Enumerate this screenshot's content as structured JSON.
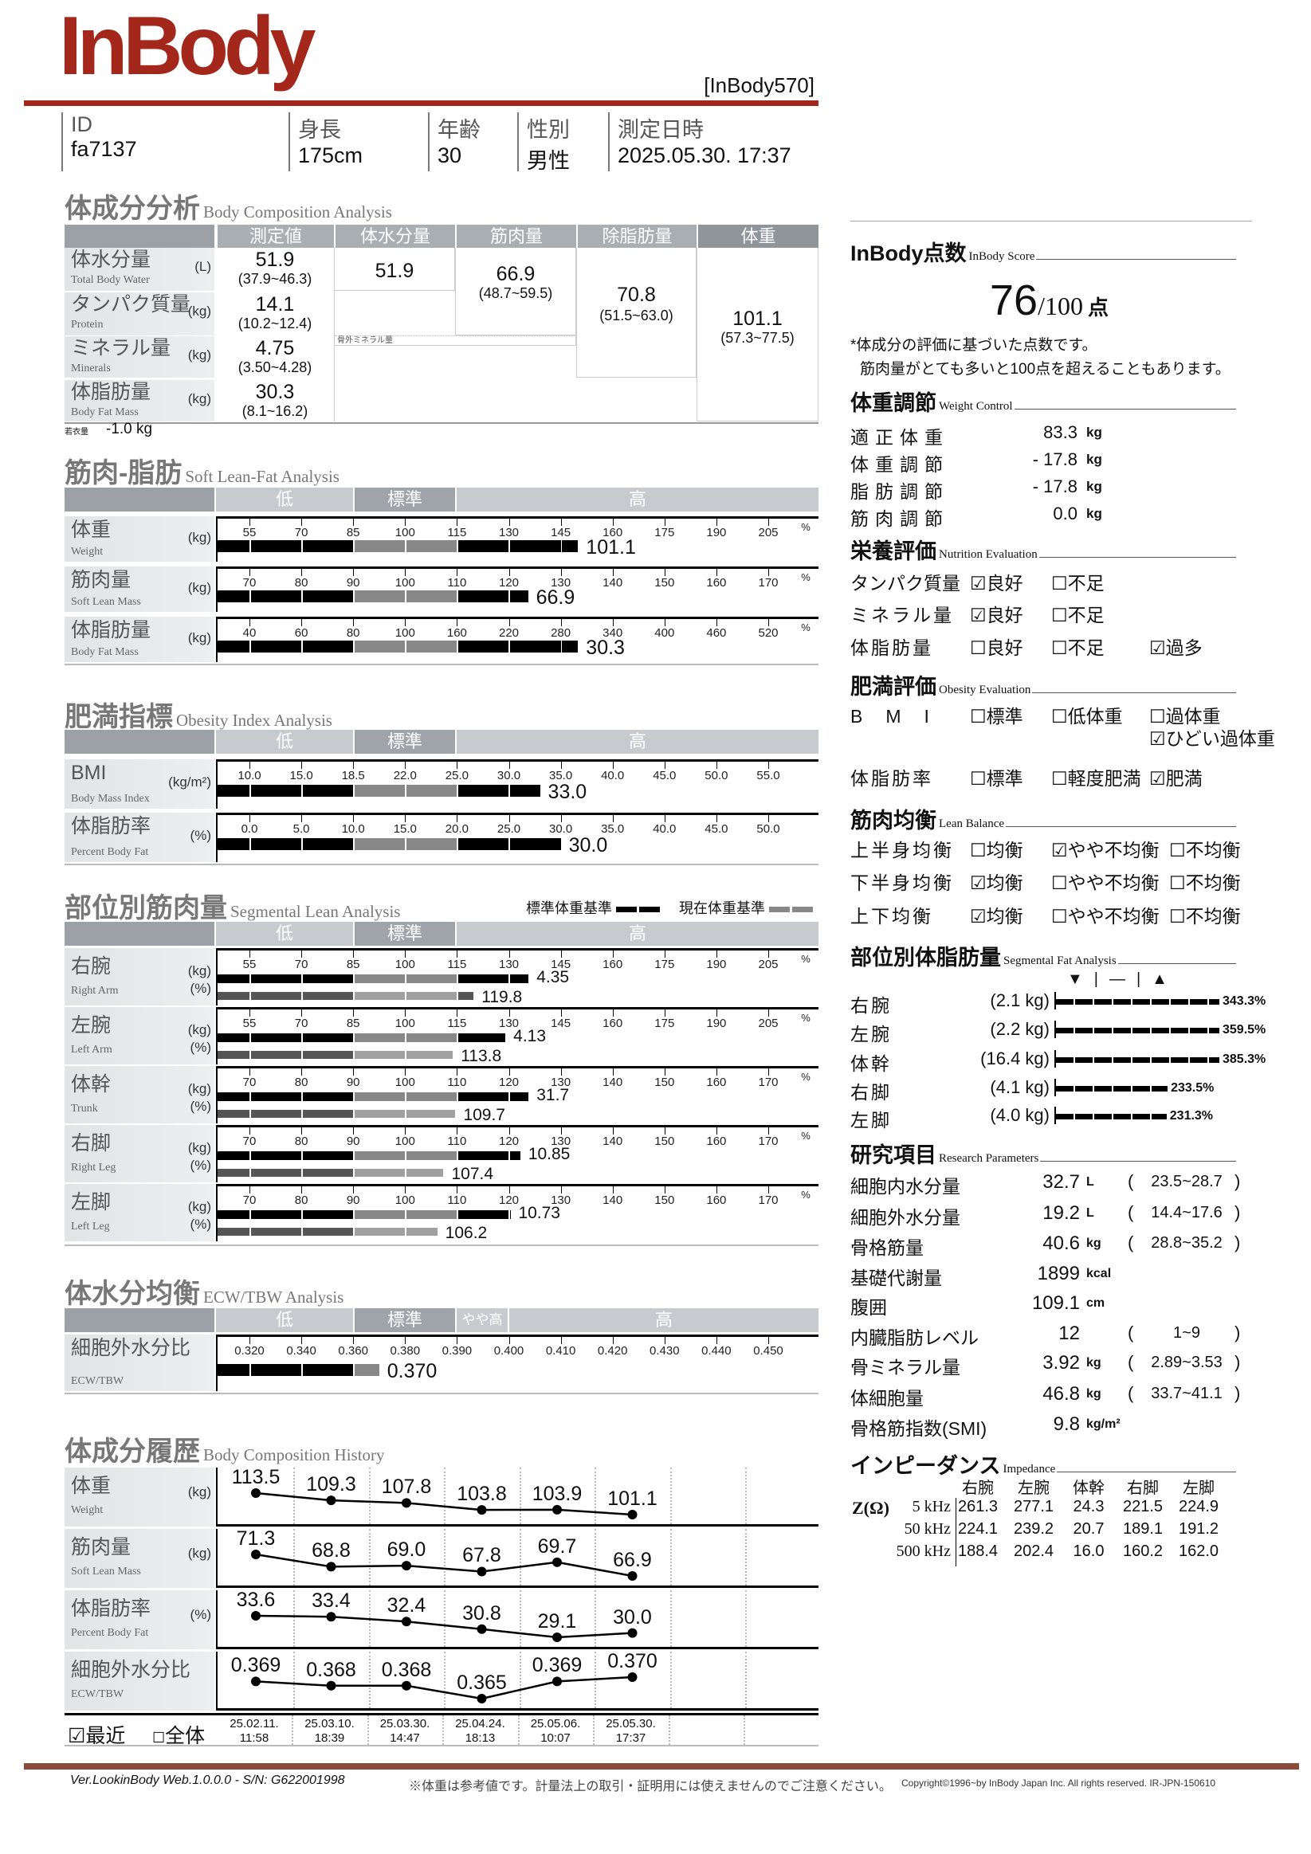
{
  "header": {
    "logo": "InBody",
    "model": "[InBody570]"
  },
  "info": [
    {
      "label": "ID",
      "value": "fa7137"
    },
    {
      "label": "身長",
      "value": "175cm"
    },
    {
      "label": "年齢",
      "value": "30"
    },
    {
      "label": "性別",
      "value": "男性"
    },
    {
      "label": "測定日時",
      "value": "2025.05.30. 17:37"
    }
  ],
  "bca": {
    "title": "体成分分析",
    "subtitle": "Body Composition Analysis",
    "columns": [
      "測定値",
      "体水分量",
      "筋肉量",
      "除脂肪量",
      "体重"
    ],
    "rows": [
      {
        "jp": "体水分量",
        "en": "Total Body Water",
        "unit": "(L)",
        "value": "51.9",
        "range": "(37.9~46.3)"
      },
      {
        "jp": "タンパク質量",
        "en": "Protein",
        "unit": "(kg)",
        "value": "14.1",
        "range": "(10.2~12.4)"
      },
      {
        "jp": "ミネラル量",
        "en": "Minerals",
        "unit": "(kg)",
        "value": "4.75",
        "range": "(3.50~4.28)"
      },
      {
        "jp": "体脂肪量",
        "en": "Body Fat Mass",
        "unit": "(kg)",
        "value": "30.3",
        "range": "(8.1~16.2)"
      }
    ],
    "tbw": "51.9",
    "slm": {
      "value": "66.9",
      "range": "(48.7~59.5)"
    },
    "ffm": {
      "value": "70.8",
      "range": "(51.5~63.0)"
    },
    "weight": {
      "value": "101.1",
      "range": "(57.3~77.5)"
    },
    "osseous_label": "骨外ミネラル量",
    "clothes_label": "若衣量",
    "clothes_value": "-1.0 kg"
  },
  "zones": {
    "low": "低",
    "normal": "標準",
    "high": "高",
    "slightly_high": "やや高"
  },
  "slf": {
    "title": "筋肉-脂肪",
    "subtitle": "Soft Lean-Fat Analysis",
    "rows": [
      {
        "jp": "体重",
        "en": "Weight",
        "unit": "(kg)",
        "pct": "%",
        "ticks": [
          "55",
          "70",
          "85",
          "100",
          "115",
          "130",
          "145",
          "160",
          "175",
          "190",
          "205"
        ],
        "value": "101.1",
        "bar_percent": 150
      },
      {
        "jp": "筋肉量",
        "en": "Soft Lean Mass",
        "unit": "(kg)",
        "pct": "%",
        "ticks": [
          "70",
          "80",
          "90",
          "100",
          "110",
          "120",
          "130",
          "140",
          "150",
          "160",
          "170"
        ],
        "value": "66.9",
        "bar_percent": 123.7
      },
      {
        "jp": "体脂肪量",
        "en": "Body Fat Mass",
        "unit": "(kg)",
        "pct": "%",
        "ticks": [
          "40",
          "60",
          "80",
          "100",
          "160",
          "220",
          "280",
          "340",
          "400",
          "460",
          "520"
        ],
        "value": "30.3",
        "bar_percent": 300
      }
    ]
  },
  "obesity": {
    "title": "肥満指標",
    "subtitle": "Obesity Index Analysis",
    "rows": [
      {
        "jp": "BMI",
        "en": "Body Mass Index",
        "unit": "(kg/m²)",
        "ticks": [
          "10.0",
          "15.0",
          "18.5",
          "22.0",
          "25.0",
          "30.0",
          "35.0",
          "40.0",
          "45.0",
          "50.0",
          "55.0"
        ],
        "value": "33.0",
        "bar_percent": 33.0
      },
      {
        "jp": "体脂肪率",
        "en": "Percent Body Fat",
        "unit": "(%)",
        "ticks": [
          "0.0",
          "5.0",
          "10.0",
          "15.0",
          "20.0",
          "25.0",
          "30.0",
          "35.0",
          "40.0",
          "45.0",
          "50.0"
        ],
        "value": "30.0",
        "bar_percent": 30.0
      }
    ]
  },
  "segmental": {
    "title": "部位別筋肉量",
    "subtitle": "Segmental Lean Analysis",
    "legend_ideal": "標準体重基準",
    "legend_current": "現在体重基準",
    "rows": [
      {
        "jp": "右腕",
        "en": "Right Arm",
        "unit_kg": "(kg)",
        "unit_pct": "(%)",
        "pct": "%",
        "ticks": [
          "55",
          "70",
          "85",
          "100",
          "115",
          "130",
          "145",
          "160",
          "175",
          "190",
          "205"
        ],
        "kg": "4.35",
        "kg_bar_percent": 135.7,
        "percent": "119.8",
        "percent_value": 119.8
      },
      {
        "jp": "左腕",
        "en": "Left Arm",
        "unit_kg": "(kg)",
        "unit_pct": "(%)",
        "pct": "%",
        "ticks": [
          "55",
          "70",
          "85",
          "100",
          "115",
          "130",
          "145",
          "160",
          "175",
          "190",
          "205"
        ],
        "kg": "4.13",
        "kg_bar_percent": 129,
        "percent": "113.8",
        "percent_value": 113.8
      },
      {
        "jp": "体幹",
        "en": "Trunk",
        "unit_kg": "(kg)",
        "unit_pct": "(%)",
        "pct": "%",
        "ticks": [
          "70",
          "80",
          "90",
          "100",
          "110",
          "120",
          "130",
          "140",
          "150",
          "160",
          "170"
        ],
        "kg": "31.7",
        "kg_bar_percent": 123.8,
        "percent": "109.7",
        "percent_value": 109.7
      },
      {
        "jp": "右脚",
        "en": "Right Leg",
        "unit_kg": "(kg)",
        "unit_pct": "(%)",
        "pct": "%",
        "ticks": [
          "70",
          "80",
          "90",
          "100",
          "110",
          "120",
          "130",
          "140",
          "150",
          "160",
          "170"
        ],
        "kg": "10.85",
        "kg_bar_percent": 122.2,
        "percent": "107.4",
        "percent_value": 107.4
      },
      {
        "jp": "左脚",
        "en": "Left Leg",
        "unit_kg": "(kg)",
        "unit_pct": "(%)",
        "pct": "%",
        "ticks": [
          "70",
          "80",
          "90",
          "100",
          "110",
          "120",
          "130",
          "140",
          "150",
          "160",
          "170"
        ],
        "kg": "10.73",
        "kg_bar_percent": 120.3,
        "percent": "106.2",
        "percent_value": 106.2
      }
    ]
  },
  "ecw": {
    "title": "体水分均衡",
    "subtitle": "ECW/TBW Analysis",
    "rows": [
      {
        "jp": "細胞外水分比",
        "en": "ECW/TBW",
        "unit": "",
        "ticks": [
          "0.320",
          "0.340",
          "0.360",
          "0.380",
          "0.390",
          "0.400",
          "0.410",
          "0.420",
          "0.430",
          "0.440",
          "0.450"
        ],
        "value": "0.370",
        "bar_percent": 0.37
      }
    ]
  },
  "history": {
    "title": "体成分履歴",
    "subtitle": "Body Composition History",
    "rows": [
      {
        "jp": "体重",
        "en": "Weight",
        "unit": "(kg)",
        "values": [
          "113.5",
          "109.3",
          "107.8",
          "103.8",
          "103.9",
          "101.1"
        ]
      },
      {
        "jp": "筋肉量",
        "en": "Soft Lean Mass",
        "unit": "(kg)",
        "values": [
          "71.3",
          "68.8",
          "69.0",
          "67.8",
          "69.7",
          "66.9"
        ]
      },
      {
        "jp": "体脂肪率",
        "en": "Percent Body Fat",
        "unit": "(%)",
        "values": [
          "33.6",
          "33.4",
          "32.4",
          "30.8",
          "29.1",
          "30.0"
        ]
      },
      {
        "jp": "細胞外水分比",
        "en": "ECW/TBW",
        "unit": "",
        "values": [
          "0.369",
          "0.368",
          "0.368",
          "0.365",
          "0.369",
          "0.370"
        ]
      }
    ],
    "dates": [
      {
        "d": "25.02.11.",
        "t": "11:58"
      },
      {
        "d": "25.03.10.",
        "t": "18:39"
      },
      {
        "d": "25.03.30.",
        "t": "14:47"
      },
      {
        "d": "25.04.24.",
        "t": "18:13"
      },
      {
        "d": "25.05.06.",
        "t": "10:07"
      },
      {
        "d": "25.05.30.",
        "t": "17:37"
      }
    ],
    "recent": {
      "label": "最近",
      "checked": true
    },
    "all": {
      "label": "全体",
      "checked": false
    }
  },
  "score": {
    "title": "InBody点数",
    "subtitle": "InBody Score",
    "value": "76",
    "max": "/100",
    "unit": "点",
    "note1": "*体成分の評価に基づいた点数です。",
    "note2": "筋肉量がとても多いと100点を超えることもあります。"
  },
  "weight_control": {
    "title": "体重調節",
    "subtitle": "Weight Control",
    "rows": [
      {
        "label": "適正体重",
        "value": "83.3",
        "unit": "kg"
      },
      {
        "label": "体重調節",
        "value": "- 17.8",
        "unit": "kg"
      },
      {
        "label": "脂肪調節",
        "value": "- 17.8",
        "unit": "kg"
      },
      {
        "label": "筋肉調節",
        "value": "0.0",
        "unit": "kg"
      }
    ]
  },
  "nutrition": {
    "title": "栄養評価",
    "subtitle": "Nutrition Evaluation",
    "rows": [
      {
        "label": "タンパク質量",
        "options": [
          {
            "label": "良好",
            "checked": true
          },
          {
            "label": "不足",
            "checked": false
          }
        ]
      },
      {
        "label": "ミネラル量",
        "options": [
          {
            "label": "良好",
            "checked": true
          },
          {
            "label": "不足",
            "checked": false
          }
        ]
      },
      {
        "label": "体脂肪量",
        "options": [
          {
            "label": "良好",
            "checked": false
          },
          {
            "label": "不足",
            "checked": false
          },
          {
            "label": "過多",
            "checked": true
          }
        ]
      }
    ]
  },
  "obesity_eval": {
    "title": "肥満評価",
    "subtitle": "Obesity Evaluation",
    "rows": [
      {
        "label": "B　M　I",
        "options": [
          {
            "label": "標準",
            "checked": false
          },
          {
            "label": "低体重",
            "checked": false
          },
          {
            "label": "過体重",
            "checked": false
          },
          {
            "label": "ひどい過体重",
            "checked": true
          }
        ]
      },
      {
        "label": "体脂肪率",
        "options": [
          {
            "label": "標準",
            "checked": false
          },
          {
            "label": "軽度肥満",
            "checked": false
          },
          {
            "label": "肥満",
            "checked": true
          }
        ]
      }
    ]
  },
  "lean_balance": {
    "title": "筋肉均衡",
    "subtitle": "Lean Balance",
    "rows": [
      {
        "label": "上半身均衡",
        "options": [
          {
            "label": "均衡",
            "checked": false
          },
          {
            "label": "やや不均衡",
            "checked": true
          },
          {
            "label": "不均衡",
            "checked": false
          }
        ]
      },
      {
        "label": "下半身均衡",
        "options": [
          {
            "label": "均衡",
            "checked": true
          },
          {
            "label": "やや不均衡",
            "checked": false
          },
          {
            "label": "不均衡",
            "checked": false
          }
        ]
      },
      {
        "label": "上下均衡",
        "options": [
          {
            "label": "均衡",
            "checked": true
          },
          {
            "label": "やや不均衡",
            "checked": false
          },
          {
            "label": "不均衡",
            "checked": false
          }
        ]
      }
    ]
  },
  "seg_fat": {
    "title": "部位別体脂肪量",
    "subtitle": "Segmental Fat Analysis",
    "rows": [
      {
        "label": "右腕",
        "kg": "(2.1 kg)",
        "percent": "343.3%",
        "percent_value": 343.3
      },
      {
        "label": "左腕",
        "kg": "(2.2 kg)",
        "percent": "359.5%",
        "percent_value": 359.5
      },
      {
        "label": "体幹",
        "kg": "(16.4 kg)",
        "percent": "385.3%",
        "percent_value": 385.3
      },
      {
        "label": "右脚",
        "kg": "(4.1 kg)",
        "percent": "233.5%",
        "percent_value": 233.5
      },
      {
        "label": "左脚",
        "kg": "(4.0 kg)",
        "percent": "231.3%",
        "percent_value": 231.3
      }
    ]
  },
  "research": {
    "title": "研究項目",
    "subtitle": "Research Parameters",
    "rows": [
      {
        "label": "細胞内水分量",
        "value": "32.7",
        "unit": "L",
        "range": "23.5~28.7"
      },
      {
        "label": "細胞外水分量",
        "value": "19.2",
        "unit": "L",
        "range": "14.4~17.6"
      },
      {
        "label": "骨格筋量",
        "value": "40.6",
        "unit": "kg",
        "range": "28.8~35.2"
      },
      {
        "label": "基礎代謝量",
        "value": "1899",
        "unit": "kcal",
        "range": ""
      },
      {
        "label": "腹囲",
        "value": "109.1",
        "unit": "cm",
        "range": ""
      },
      {
        "label": "内臓脂肪レベル",
        "value": "12",
        "unit": "",
        "range": "1~9"
      },
      {
        "label": "骨ミネラル量",
        "value": "3.92",
        "unit": "kg",
        "range": "2.89~3.53"
      },
      {
        "label": "体細胞量",
        "value": "46.8",
        "unit": "kg",
        "range": "33.7~41.1"
      },
      {
        "label": "骨格筋指数(SMI)",
        "value": "9.8",
        "unit": "kg/m²",
        "range": ""
      }
    ]
  },
  "impedance": {
    "title": "インピーダンス",
    "subtitle": "Impedance",
    "z_label": "Z(Ω)",
    "columns": [
      "右腕",
      "左腕",
      "体幹",
      "右脚",
      "左脚"
    ],
    "rows": [
      {
        "freq": "5 kHz",
        "values": [
          "261.3",
          "277.1",
          "24.3",
          "221.5",
          "224.9"
        ]
      },
      {
        "freq": "50 kHz",
        "values": [
          "224.1",
          "239.2",
          "20.7",
          "189.1",
          "191.2"
        ]
      },
      {
        "freq": "500 kHz",
        "values": [
          "188.4",
          "202.4",
          "16.0",
          "160.2",
          "162.0"
        ]
      }
    ]
  },
  "footer": {
    "version": "Ver.LookinBody Web.1.0.0.0 - S/N: G622001998",
    "notice": "※体重は参考値です。計量法上の取引・証明用には使えませんのでご注意ください。",
    "copyright": "Copyright©1996~by InBody Japan Inc. All rights reserved. IR-JPN-150610"
  },
  "colors": {
    "brand": "#a3271b",
    "footer_line": "#8b4a3a",
    "bar_dark": "#000000",
    "bar_normal": "#888888",
    "pct_dark": "#555555",
    "pct_light": "#a0a0a0"
  }
}
